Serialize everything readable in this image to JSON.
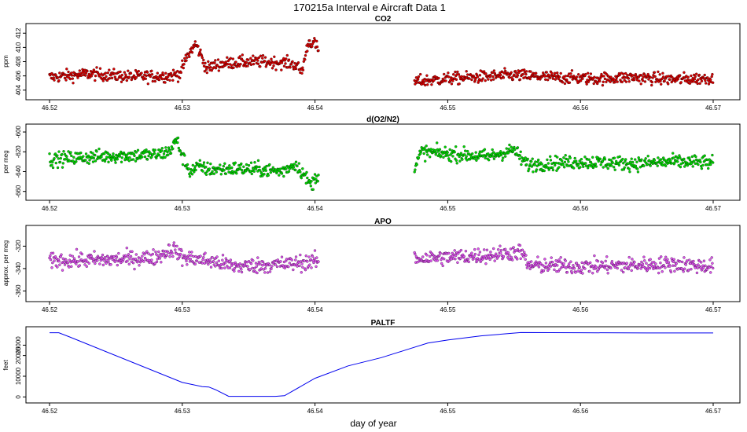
{
  "figure": {
    "title": "170215a   Interval e Aircraft Data 1",
    "xlabel": "day of year"
  },
  "chart_data": [
    {
      "type": "scatter",
      "title": "CO2",
      "ylabel": "ppm",
      "xlim": [
        46.52,
        46.57
      ],
      "ylim": [
        403.2,
        412.8
      ],
      "x_ticks": [
        "46.52",
        "46.53",
        "46.54",
        "46.55",
        "46.56",
        "46.57"
      ],
      "y_ticks": [
        "404",
        "406",
        "408",
        "410",
        "412"
      ],
      "series": [
        {
          "color": "#dd0000",
          "edge": "#3a0000",
          "noise": 0.6,
          "segments": [
            {
              "x": [
                46.52,
                46.523,
                46.526,
                46.529,
                46.5298,
                46.5304,
                46.531,
                46.5315,
                46.5318,
                46.5326,
                46.534,
                46.536,
                46.538,
                46.5386,
                46.539,
                46.5395,
                46.54,
                46.5403
              ],
              "y": [
                405.8,
                406.3,
                405.9,
                406.0,
                406.3,
                408.8,
                410.5,
                408.6,
                407.0,
                407.6,
                407.9,
                408.0,
                407.8,
                407.5,
                406.5,
                410.8,
                410.5,
                409.3
              ]
            },
            {
              "x": [
                46.5475,
                46.55,
                46.553,
                46.555,
                46.558,
                46.561,
                46.564,
                46.567,
                46.57
              ],
              "y": [
                405.2,
                405.6,
                405.9,
                406.1,
                405.8,
                405.6,
                405.8,
                405.5,
                405.7
              ]
            }
          ]
        }
      ]
    },
    {
      "type": "scatter",
      "title": "d(O2/N2)",
      "ylabel": "per meg",
      "xlim": [
        46.52,
        46.57
      ],
      "ylim": [
        -665,
        -596
      ],
      "x_ticks": [
        "46.52",
        "46.53",
        "46.54",
        "46.55",
        "46.56",
        "46.57"
      ],
      "y_ticks": [
        "-660",
        "-640",
        "-620",
        "-600"
      ],
      "series": [
        {
          "color": "#00dd00",
          "edge": "#003a00",
          "noise": 5,
          "segments": [
            {
              "x": [
                46.52,
                46.522,
                46.525,
                46.528,
                46.529,
                46.5296,
                46.53,
                46.5306,
                46.5312,
                46.532,
                46.534,
                46.536,
                46.5375,
                46.5385,
                46.539,
                46.5397,
                46.5403
              ],
              "y": [
                -628,
                -626,
                -624,
                -623,
                -620,
                -608,
                -625,
                -640,
                -635,
                -638,
                -637,
                -638,
                -640,
                -632,
                -640,
                -654,
                -641
              ]
            },
            {
              "x": [
                46.5475,
                46.548,
                46.55,
                46.553,
                46.555,
                46.5556,
                46.556,
                46.56,
                46.564,
                46.567,
                46.57
              ],
              "y": [
                -638,
                -620,
                -622,
                -625,
                -618,
                -628,
                -633,
                -630,
                -632,
                -630,
                -631
              ]
            }
          ]
        }
      ]
    },
    {
      "type": "scatter",
      "title": "APO",
      "ylabel": "approx. per meg",
      "xlim": [
        46.52,
        46.57
      ],
      "ylim": [
        -366,
        -305
      ],
      "x_ticks": [
        "46.52",
        "46.53",
        "46.54",
        "46.55",
        "46.56",
        "46.57"
      ],
      "y_ticks": [
        "-360",
        "-340",
        "-320"
      ],
      "series": [
        {
          "color": "#dd55ee",
          "edge": "#4a1050",
          "noise": 5,
          "segments": [
            {
              "x": [
                46.52,
                46.525,
                46.528,
                46.5293,
                46.53,
                46.532,
                46.534,
                46.536,
                46.538,
                46.5403
              ],
              "y": [
                -333,
                -332,
                -330,
                -322,
                -330,
                -333,
                -338,
                -337,
                -336,
                -333
              ]
            },
            {
              "x": [
                46.5475,
                46.55,
                46.553,
                46.5556,
                46.556,
                46.56,
                46.564,
                46.567,
                46.57
              ],
              "y": [
                -331,
                -330,
                -328,
                -325,
                -337,
                -338,
                -337,
                -336,
                -338
              ]
            }
          ]
        }
      ]
    },
    {
      "type": "line",
      "title": "PALTF",
      "ylabel": "feet",
      "xlim": [
        46.52,
        46.57
      ],
      "ylim": [
        -1000,
        32000
      ],
      "x_ticks": [
        "46.52",
        "46.53",
        "46.54",
        "46.55",
        "46.56",
        "46.57"
      ],
      "y_ticks": [
        "0",
        "10000",
        "20000",
        "25000"
      ],
      "series": [
        {
          "color": "#0000ee",
          "x": [
            46.52,
            46.5207,
            46.5215,
            46.53,
            46.5315,
            46.532,
            46.5325,
            46.5335,
            46.535,
            46.537,
            46.5377,
            46.54,
            46.5425,
            46.545,
            46.547,
            46.5485,
            46.55,
            46.5525,
            46.5555,
            46.56,
            46.565,
            46.57
          ],
          "y": [
            31000,
            31000,
            29000,
            7000,
            5000,
            4800,
            3500,
            300,
            300,
            300,
            600,
            9000,
            15000,
            19000,
            23000,
            26000,
            27500,
            29500,
            31100,
            31000,
            30900,
            30900
          ]
        }
      ]
    }
  ]
}
